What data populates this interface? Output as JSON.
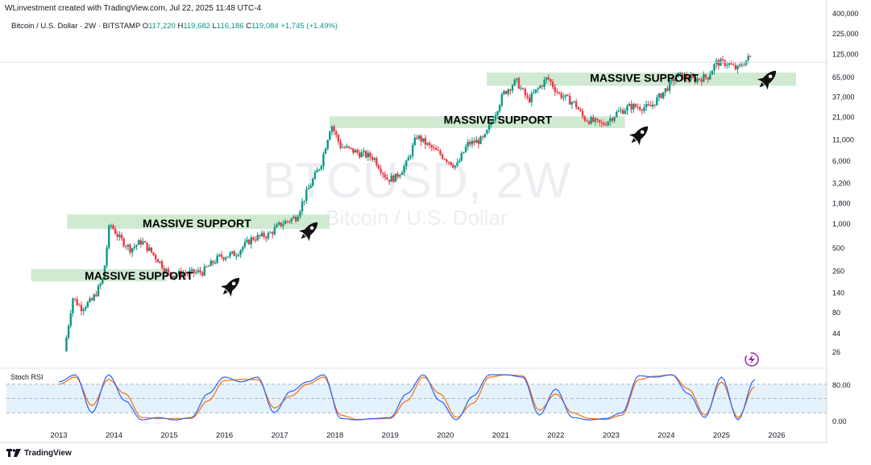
{
  "header": {
    "attribution": "WLinvestment created with TradingView.com, Jul 22, 2025 11:48 UTC-4"
  },
  "symbol_bar": {
    "name": "Bitcoin / U.S. Dollar · 2W · BITSTAMP",
    "o_label": "O",
    "o_value": "117,220",
    "h_label": "H",
    "h_value": "119,682",
    "l_label": "L",
    "l_value": "116,186",
    "c_label": "C",
    "c_value": "119,084",
    "change": "+1,745 (+1.49%)"
  },
  "watermark": {
    "ticker": "BTCUSD, 2W",
    "name": "Bitcoin / U.S. Dollar"
  },
  "footer": {
    "brand": "TradingView"
  },
  "colors": {
    "up": "#089981",
    "down": "#f23645",
    "zone": "#c8e6c9",
    "rsi_k": "#2962ff",
    "rsi_d": "#ff6d00",
    "rsi_band": "#e3f2fd",
    "grid": "#e0e3eb"
  },
  "chart_data": [
    {
      "type": "candlestick",
      "scale": "log",
      "ylim": [
        16,
        400000
      ],
      "xlim": [
        2012.5,
        2026.5
      ],
      "x_ticks": [
        "2013",
        "2014",
        "2015",
        "2016",
        "2017",
        "2018",
        "2019",
        "2020",
        "2021",
        "2022",
        "2023",
        "2024",
        "2025",
        "2026"
      ],
      "x_tick_values": [
        2013,
        2014,
        2015,
        2016,
        2017,
        2018,
        2019,
        2020,
        2021,
        2022,
        2023,
        2024,
        2025,
        2026
      ],
      "y_ticks": [
        "400,000",
        "225,000",
        "125,000",
        "65,000",
        "37,000",
        "21,000",
        "11,000",
        "6,000",
        "3,200",
        "1,800",
        "1,000",
        "500",
        "260",
        "140",
        "80",
        "44",
        "26"
      ],
      "y_tick_values": [
        400000,
        225000,
        125000,
        65000,
        37000,
        21000,
        11000,
        6000,
        3200,
        1800,
        1000,
        500,
        260,
        140,
        80,
        44,
        26
      ],
      "last_price": 119084,
      "price_path": [
        [
          2013.1,
          26
        ],
        [
          2013.25,
          120
        ],
        [
          2013.4,
          90
        ],
        [
          2013.6,
          110
        ],
        [
          2013.8,
          200
        ],
        [
          2013.92,
          1000
        ],
        [
          2014.1,
          650
        ],
        [
          2014.3,
          480
        ],
        [
          2014.5,
          600
        ],
        [
          2014.8,
          350
        ],
        [
          2015.0,
          230
        ],
        [
          2015.3,
          240
        ],
        [
          2015.6,
          250
        ],
        [
          2015.9,
          380
        ],
        [
          2016.2,
          420
        ],
        [
          2016.5,
          650
        ],
        [
          2016.8,
          720
        ],
        [
          2017.0,
          960
        ],
        [
          2017.3,
          1200
        ],
        [
          2017.5,
          2500
        ],
        [
          2017.75,
          5500
        ],
        [
          2017.93,
          17000
        ],
        [
          2018.1,
          9000
        ],
        [
          2018.4,
          7500
        ],
        [
          2018.7,
          6500
        ],
        [
          2018.95,
          3500
        ],
        [
          2019.1,
          3700
        ],
        [
          2019.3,
          5500
        ],
        [
          2019.48,
          12000
        ],
        [
          2019.7,
          9000
        ],
        [
          2019.9,
          7200
        ],
        [
          2020.2,
          5000
        ],
        [
          2020.4,
          9500
        ],
        [
          2020.7,
          11000
        ],
        [
          2020.85,
          19000
        ],
        [
          2021.05,
          40000
        ],
        [
          2021.28,
          58000
        ],
        [
          2021.5,
          33000
        ],
        [
          2021.7,
          48000
        ],
        [
          2021.85,
          63000
        ],
        [
          2022.05,
          40000
        ],
        [
          2022.35,
          30000
        ],
        [
          2022.5,
          20000
        ],
        [
          2022.85,
          16500
        ],
        [
          2023.1,
          23000
        ],
        [
          2023.35,
          28000
        ],
        [
          2023.7,
          27000
        ],
        [
          2023.95,
          42000
        ],
        [
          2024.2,
          68000
        ],
        [
          2024.5,
          60000
        ],
        [
          2024.75,
          65000
        ],
        [
          2024.9,
          97000
        ],
        [
          2025.1,
          96000
        ],
        [
          2025.28,
          80000
        ],
        [
          2025.45,
          105000
        ],
        [
          2025.55,
          119084
        ]
      ],
      "annotations": [
        {
          "text": "MASSIVE SUPPORT",
          "x_start": 2012.5,
          "x_end": 2014.95,
          "price_low": 190,
          "price_high": 270
        },
        {
          "text": "MASSIVE SUPPORT",
          "x_start": 2013.15,
          "x_end": 2017.9,
          "price_low": 850,
          "price_high": 1280
        },
        {
          "text": "MASSIVE SUPPORT",
          "x_start": 2017.9,
          "x_end": 2023.25,
          "price_low": 15000,
          "price_high": 21000
        },
        {
          "text": "MASSIVE SUPPORT",
          "x_start": 2020.75,
          "x_end": 2026.35,
          "price_low": 50000,
          "price_high": 73000
        }
      ]
    },
    {
      "type": "line",
      "title": "Stoch RSI",
      "ylim": [
        0,
        100
      ],
      "y_ticks": [
        "80.00",
        "0.00"
      ],
      "y_tick_values": [
        80,
        0
      ],
      "bands": [
        80,
        50,
        20
      ],
      "series": [
        {
          "key": "k",
          "x": [
            2013.0,
            2013.3,
            2013.6,
            2013.9,
            2014.2,
            2014.5,
            2014.8,
            2015.1,
            2015.4,
            2015.7,
            2016.0,
            2016.3,
            2016.6,
            2016.9,
            2017.2,
            2017.5,
            2017.8,
            2018.1,
            2018.4,
            2018.7,
            2019.0,
            2019.3,
            2019.6,
            2019.9,
            2020.2,
            2020.5,
            2020.8,
            2021.1,
            2021.4,
            2021.7,
            2022.0,
            2022.3,
            2022.6,
            2022.9,
            2023.2,
            2023.5,
            2023.8,
            2024.1,
            2024.4,
            2024.7,
            2025.0,
            2025.3,
            2025.6
          ],
          "values": [
            85,
            100,
            20,
            100,
            45,
            5,
            10,
            5,
            10,
            60,
            95,
            85,
            95,
            20,
            65,
            85,
            100,
            8,
            5,
            8,
            10,
            60,
            100,
            45,
            5,
            55,
            100,
            100,
            95,
            15,
            70,
            10,
            5,
            8,
            20,
            98,
            95,
            100,
            60,
            10,
            95,
            5,
            90
          ]
        },
        {
          "key": "d",
          "x": [
            2013.0,
            2013.3,
            2013.6,
            2013.9,
            2014.2,
            2014.5,
            2014.8,
            2015.1,
            2015.4,
            2015.7,
            2016.0,
            2016.3,
            2016.6,
            2016.9,
            2017.2,
            2017.5,
            2017.8,
            2018.1,
            2018.4,
            2018.7,
            2019.0,
            2019.3,
            2019.6,
            2019.9,
            2020.2,
            2020.5,
            2020.8,
            2021.1,
            2021.4,
            2021.7,
            2022.0,
            2022.3,
            2022.6,
            2022.9,
            2023.2,
            2023.5,
            2023.8,
            2024.1,
            2024.4,
            2024.7,
            2025.0,
            2025.3,
            2025.6
          ],
          "values": [
            80,
            95,
            35,
            90,
            60,
            10,
            8,
            8,
            8,
            45,
            88,
            90,
            90,
            30,
            55,
            80,
            95,
            15,
            6,
            7,
            8,
            45,
            95,
            60,
            10,
            40,
            95,
            100,
            98,
            25,
            60,
            20,
            8,
            6,
            15,
            90,
            97,
            100,
            70,
            15,
            85,
            10,
            75
          ]
        }
      ]
    }
  ]
}
